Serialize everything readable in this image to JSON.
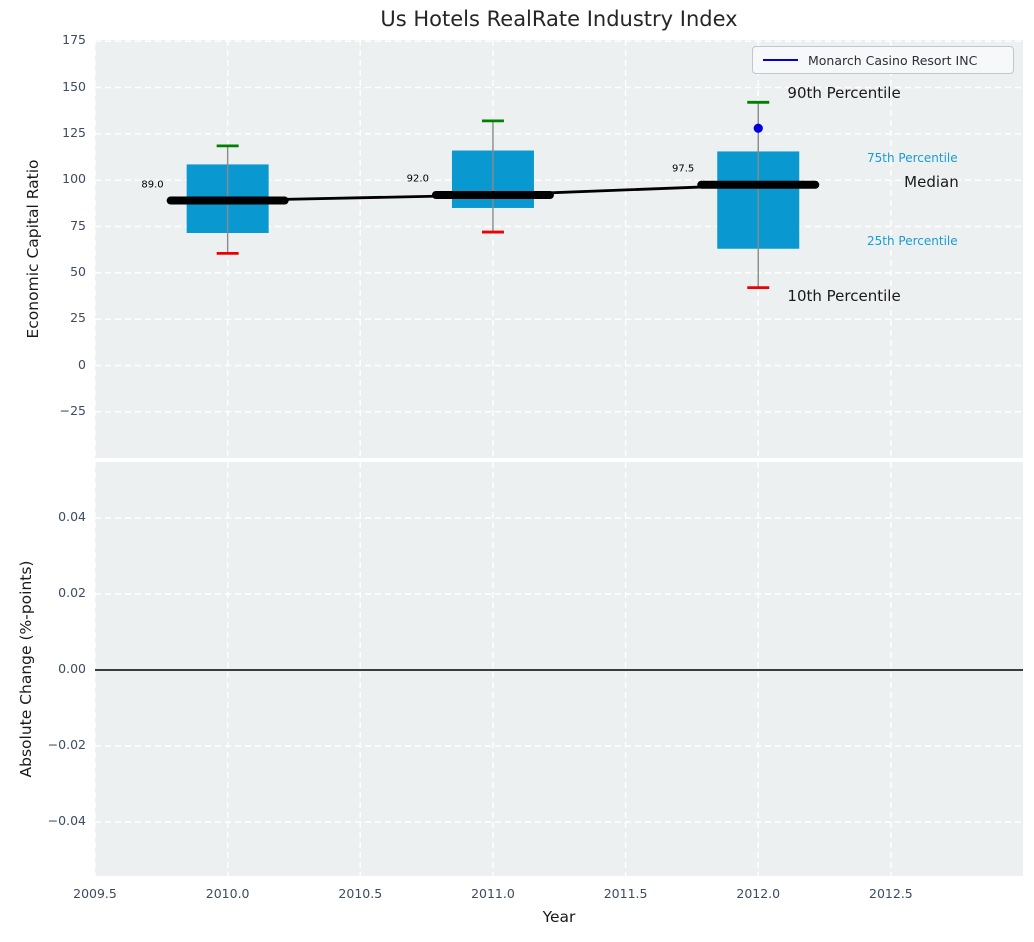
{
  "chart_data": {
    "type": "boxplot-timeseries",
    "title": "Us Hotels RealRate Industry Index",
    "xlabel": "Year",
    "xlim": [
      2009.5,
      2013.0
    ],
    "x_ticks": {
      "values": [
        2009.5,
        2010.0,
        2010.5,
        2011.0,
        2011.5,
        2012.0,
        2012.5
      ],
      "labels": [
        "2009.5",
        "2010.0",
        "2010.5",
        "2011.0",
        "2011.5",
        "2012.0",
        "2012.5"
      ]
    },
    "legend": {
      "label": "Monarch Casino Resort INC",
      "position": "upper right"
    },
    "grid": {
      "visible": true,
      "style": "dashed",
      "color": "#ffffff"
    },
    "top_panel": {
      "ylabel": "Economic Capital Ratio",
      "ylim": [
        -50,
        175
      ],
      "y_ticks": {
        "values": [
          175,
          150,
          125,
          100,
          75,
          50,
          25,
          0,
          -25
        ],
        "labels": [
          "175",
          "150",
          "125",
          "100",
          "75",
          "50",
          "25",
          "0",
          "−25"
        ]
      },
      "boxes": [
        {
          "year": 2010,
          "label": "89.0",
          "median": 89.0,
          "p90": 118.5,
          "p75": 108.5,
          "p25": 71.5,
          "p10": 60.5
        },
        {
          "year": 2011,
          "label": "92.0",
          "median": 92.0,
          "p90": 132.0,
          "p75": 116.0,
          "p25": 85.0,
          "p10": 72.0
        },
        {
          "year": 2012,
          "label": "97.5",
          "median": 97.5,
          "p90": 142.0,
          "p75": 115.5,
          "p25": 63.0,
          "p10": 42.0
        }
      ],
      "median_trend": [
        {
          "year": 2010,
          "value": 89.0
        },
        {
          "year": 2011,
          "value": 92.0
        },
        {
          "year": 2012,
          "value": 97.5
        }
      ],
      "company_point": {
        "series": "Monarch Casino Resort INC",
        "year": 2012,
        "value": 128
      },
      "annotations": [
        {
          "text": "90th Percentile",
          "year": 2012.11,
          "value": 147.0,
          "size": "lg",
          "color": "dark"
        },
        {
          "text": "75th Percentile",
          "year": 2012.41,
          "value": 112.0,
          "size": "sm",
          "color": "accent"
        },
        {
          "text": "Median",
          "year": 2012.55,
          "value": 99.0,
          "size": "lg",
          "color": "dark"
        },
        {
          "text": "25th Percentile",
          "year": 2012.41,
          "value": 67.0,
          "size": "sm",
          "color": "accent"
        },
        {
          "text": "10th Percentile",
          "year": 2012.11,
          "value": 37.5,
          "size": "lg",
          "color": "dark"
        }
      ]
    },
    "bottom_panel": {
      "ylabel": "Absolute Change (%-points)",
      "ylim": [
        -0.055,
        0.055
      ],
      "y_ticks": {
        "values": [
          0.04,
          0.02,
          0.0,
          -0.02,
          -0.04
        ],
        "labels": [
          "0.04",
          "0.02",
          "0.00",
          "−0.02",
          "−0.04"
        ]
      },
      "zero_line": 0.0
    },
    "colors": {
      "box_fill": "#0998cf",
      "cap_top": "#008000",
      "cap_bottom": "#ee0000",
      "median_line": "#000000",
      "whisker": "#8a8a8a",
      "company_blue": "#0000dd",
      "accent_text": "#189cd2",
      "dark_text": "#1a1a1a",
      "plot_bg": "#edf0f1",
      "grid": "#ffffff",
      "zero_line": "#000000",
      "tick_text": "#3d4c63"
    }
  }
}
